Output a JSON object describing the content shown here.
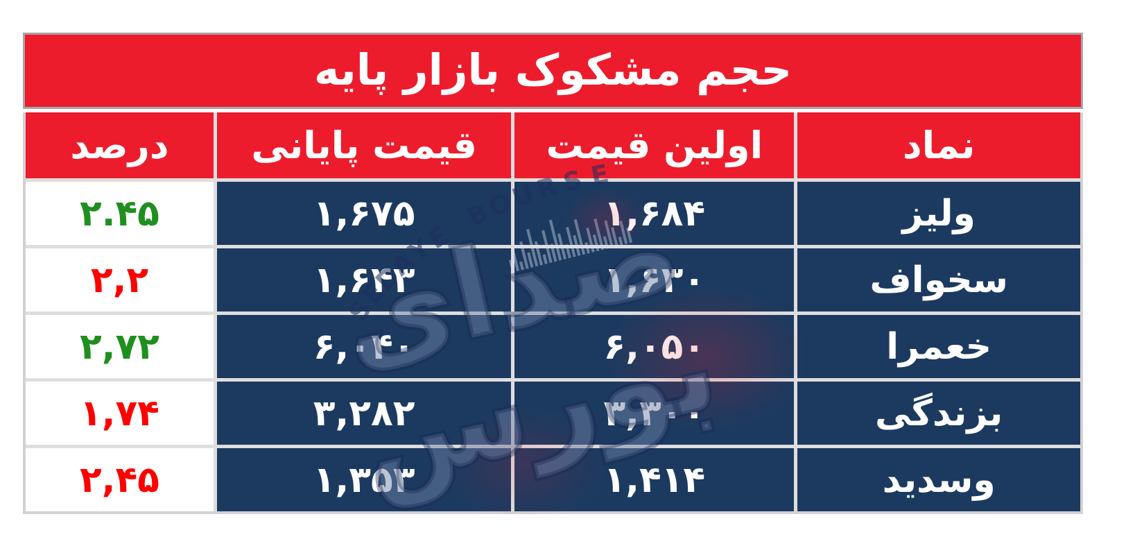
{
  "title": "حجم مشکوک بازار پایه",
  "table": {
    "columns": [
      {
        "key": "symbol",
        "label": "نماد"
      },
      {
        "key": "first_price",
        "label": "اولین قیمت"
      },
      {
        "key": "close_price",
        "label": "قیمت پایانی"
      },
      {
        "key": "percent",
        "label": "درصد"
      }
    ],
    "rows": [
      {
        "symbol": "ولیز",
        "first_price": "۱,۶۸۴",
        "close_price": "۱,۶۷۵",
        "percent": "۲.۴۵",
        "percent_color": "green"
      },
      {
        "symbol": "سخواف",
        "first_price": "۱,۶۳۰",
        "close_price": "۱,۶۴۳",
        "percent": "۲,۲",
        "percent_color": "red"
      },
      {
        "symbol": "خعمرا",
        "first_price": "۶,۰۵۰",
        "close_price": "۶,۰۴۰",
        "percent": "۲,۷۲",
        "percent_color": "green"
      },
      {
        "symbol": "بزندگی",
        "first_price": "۳,۳۰۰",
        "close_price": "۳,۲۸۲",
        "percent": "۱,۷۴",
        "percent_color": "red"
      },
      {
        "symbol": "وسدید",
        "first_price": "۱,۴۱۴",
        "close_price": "۱,۳۵۳",
        "percent": "۲,۴۵",
        "percent_color": "red"
      }
    ]
  },
  "watermark": {
    "arc_text": "SEDAYE BOURSE",
    "logo_text": "صدای بورس"
  },
  "colors": {
    "header_red": "#ed1c2d",
    "cell_navy": "#1c3a60",
    "divider_gray": "#dedede",
    "title_border_gray": "#a6a6a6",
    "percent_green": "#1f8f1f",
    "percent_red": "#ff0000"
  },
  "chart_data": {
    "type": "table",
    "title": "حجم مشکوک بازار پایه",
    "columns": [
      "نماد",
      "اولین قیمت",
      "قیمت پایانی",
      "درصد"
    ],
    "rows": [
      {
        "symbol": "ولیز",
        "first_price": 1684,
        "close_price": 1675,
        "percent": 2.45,
        "percent_color": "green"
      },
      {
        "symbol": "سخواف",
        "first_price": 1630,
        "close_price": 1643,
        "percent": 2.2,
        "percent_color": "red"
      },
      {
        "symbol": "خعمرا",
        "first_price": 6050,
        "close_price": 6040,
        "percent": 2.72,
        "percent_color": "green"
      },
      {
        "symbol": "بزندگی",
        "first_price": 3300,
        "close_price": 3282,
        "percent": 1.74,
        "percent_color": "red"
      },
      {
        "symbol": "وسدید",
        "first_price": 1414,
        "close_price": 1353,
        "percent": 2.45,
        "percent_color": "red"
      }
    ]
  }
}
